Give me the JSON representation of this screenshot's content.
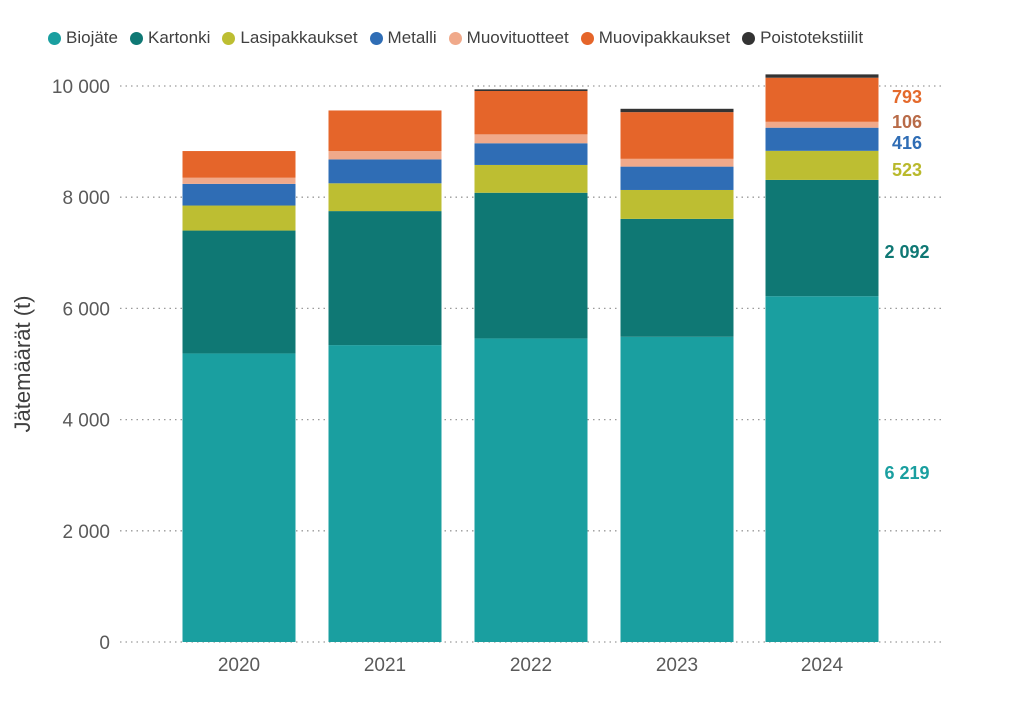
{
  "chart_data": {
    "type": "bar",
    "stacked": true,
    "ylabel": "Jätemäärät (t)",
    "ylim": [
      0,
      10000
    ],
    "yticks": [
      0,
      2000,
      4000,
      6000,
      8000,
      10000
    ],
    "ytick_labels": [
      "0",
      "2 000",
      "4 000",
      "6 000",
      "8 000",
      "10 000"
    ],
    "categories": [
      "2020",
      "2021",
      "2022",
      "2023",
      "2024"
    ],
    "grid": true,
    "legend_position": "top",
    "series": [
      {
        "name": "Biojäte",
        "color": "#1a9fa0",
        "values": [
          5190,
          5340,
          5460,
          5490,
          6219
        ]
      },
      {
        "name": "Kartonki",
        "color": "#0f7874",
        "values": [
          2210,
          2410,
          2620,
          2120,
          2092
        ]
      },
      {
        "name": "Lasipakkaukset",
        "color": "#bdbe32",
        "values": [
          450,
          500,
          500,
          520,
          523
        ]
      },
      {
        "name": "Metalli",
        "color": "#2f6db5",
        "values": [
          390,
          430,
          390,
          420,
          416
        ]
      },
      {
        "name": "Muovituotteet",
        "color": "#f0a98a",
        "values": [
          110,
          150,
          160,
          140,
          106
        ]
      },
      {
        "name": "Muovipakkaukset",
        "color": "#e5652a",
        "values": [
          480,
          730,
          780,
          840,
          793
        ]
      },
      {
        "name": "Poistotekstiilit",
        "color": "#333333",
        "values": [
          0,
          0,
          30,
          60,
          60
        ]
      }
    ],
    "data_labels": [
      {
        "text": "793",
        "color": "#e46a2c"
      },
      {
        "text": "106",
        "color": "#b86b48"
      },
      {
        "text": "416",
        "color": "#2f6db5"
      },
      {
        "text": "523",
        "color": "#b9b92c"
      },
      {
        "text": "2 092",
        "color": "#0f7874"
      },
      {
        "text": "6 219",
        "color": "#1a9fa0"
      }
    ]
  }
}
